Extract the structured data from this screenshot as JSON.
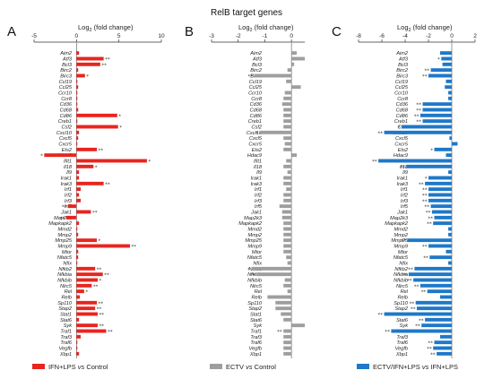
{
  "figure": {
    "title": "RelB target genes",
    "axis_title_prefix": "Log",
    "axis_title_sub": "2",
    "axis_title_suffix": " (fold change)"
  },
  "genes": [
    "Aim2",
    "Atf3",
    "Bcl3",
    "Birc2",
    "Birc3",
    "Ccl19",
    "Ccl25",
    "Ccr10",
    "Ccr8",
    "Cd36",
    "Cd68",
    "Cd86",
    "Creb1",
    "Csf2",
    "Cxcl10",
    "Cxcl5",
    "Cxcr5",
    "Ets2",
    "Hdac9",
    "Ifit1",
    "Il18",
    "Il9",
    "Irak1",
    "Irak3",
    "Irf1",
    "Irf2",
    "Irf3",
    "Irf5",
    "Jak1",
    "Map2k3",
    "Mapkapk2",
    "Mmd2",
    "Mmp2",
    "Mmp25",
    "Mmp9",
    "Mtor",
    "Nfatc5",
    "Nfix",
    "Nfkb2",
    "Nfkbia",
    "Nfkbib",
    "Nlrc5",
    "Rel",
    "Relb",
    "Sp110",
    "Stap2",
    "Stat1",
    "Stat6",
    "Syk",
    "Traf1",
    "Traf3",
    "Traf6",
    "Vegfb",
    "Xbp1"
  ],
  "chart_data": [
    {
      "type": "bar",
      "orientation": "horizontal",
      "panel": "A",
      "xlim": [
        -5,
        10
      ],
      "xticks": [
        "-5",
        "0",
        "5",
        "10"
      ],
      "series": [
        {
          "name": "IFN+LPS vs Control",
          "color": "#e8251f"
        }
      ],
      "legend": {
        "pre": "IFN+LPS ",
        "italic": "vs",
        "post": " Control"
      },
      "values": [
        0.3,
        3.2,
        2.8,
        0.2,
        1.0,
        0.1,
        0.2,
        0.1,
        0.1,
        0.1,
        0.2,
        4.8,
        0.1,
        4.9,
        0.3,
        0.2,
        0.1,
        2.4,
        -3.8,
        8.3,
        2.0,
        0.3,
        0.3,
        3.2,
        0.5,
        0.3,
        0.5,
        -1.0,
        1.7,
        -1.2,
        0.3,
        0.1,
        0.2,
        2.4,
        6.3,
        0.2,
        0.2,
        0.1,
        2.2,
        3.1,
        2.5,
        1.8,
        0.9,
        0.4,
        2.4,
        2.2,
        2.5,
        0.3,
        2.5,
        3.5,
        0.5,
        0.1,
        0.1,
        0.3
      ],
      "significance": [
        "",
        "**",
        "**",
        "",
        "*",
        "",
        "",
        "",
        "",
        "",
        "",
        "*",
        "",
        "*",
        "",
        "",
        "",
        "**",
        "*",
        "*",
        "*",
        "",
        "",
        "**",
        "",
        "",
        "",
        "**",
        "**",
        "**",
        "",
        "",
        "",
        "*",
        "**",
        "",
        "",
        "",
        "**",
        "**",
        "*",
        "**",
        "*",
        "",
        "**",
        "**",
        "**",
        "",
        "**",
        "**",
        "",
        "",
        "",
        ""
      ]
    },
    {
      "type": "bar",
      "orientation": "horizontal",
      "panel": "B",
      "xlim": [
        -3,
        0.5
      ],
      "xticks": [
        "-3",
        "-2",
        "-1",
        "0"
      ],
      "series": [
        {
          "name": "ECTV vs Control",
          "color": "#9e9e9e"
        }
      ],
      "legend": {
        "pre": "ECTV ",
        "italic": "vs",
        "post": " Control"
      },
      "values": [
        0.2,
        0.5,
        0.1,
        -0.15,
        -1.4,
        -0.2,
        0.35,
        -0.25,
        -0.3,
        -0.35,
        -0.3,
        -0.3,
        -0.3,
        -0.3,
        -1.2,
        -0.3,
        -0.25,
        -0.3,
        0.2,
        -0.2,
        -0.3,
        -0.15,
        -0.3,
        -0.3,
        -0.2,
        -0.3,
        -0.3,
        -0.45,
        -0.35,
        -0.35,
        -0.3,
        -0.3,
        -0.3,
        -0.3,
        -0.3,
        -0.3,
        -0.2,
        -0.15,
        -1.5,
        -1.3,
        -0.25,
        -0.3,
        -0.15,
        -0.9,
        -0.6,
        -0.6,
        -0.4,
        -0.3,
        0.5,
        -0.3,
        -0.3,
        -0.3,
        -0.3,
        -0.3
      ],
      "significance": [
        "",
        "",
        "",
        "",
        "**",
        "",
        "",
        "",
        "",
        "",
        "",
        "",
        "",
        "",
        "*",
        "",
        "",
        "",
        "",
        "",
        "",
        "",
        "",
        "",
        "",
        "",
        "",
        "",
        "",
        "",
        "",
        "",
        "",
        "",
        "",
        "",
        "",
        "",
        "*",
        "**",
        "",
        "",
        "",
        "",
        "",
        "",
        "",
        "",
        "",
        "**",
        "",
        "",
        "",
        ""
      ]
    },
    {
      "type": "bar",
      "orientation": "horizontal",
      "panel": "C",
      "xlim": [
        -8,
        2
      ],
      "xticks": [
        "-8",
        "-6",
        "-4",
        "-2",
        "0",
        "2"
      ],
      "series": [
        {
          "name": "ECTV/IFN+LPS vs IFN+LPS",
          "color": "#1f78c8"
        }
      ],
      "legend": {
        "pre": "ECTV/IFN+LPS ",
        "italic": "vs",
        "post": " IFN+LPS"
      },
      "values": [
        -1.0,
        -0.9,
        -0.8,
        -1.8,
        -2.0,
        -0.5,
        -0.6,
        -0.3,
        -0.3,
        -2.5,
        -2.5,
        -2.7,
        -2.5,
        -4.3,
        -5.8,
        -0.2,
        0.5,
        -1.5,
        -0.5,
        -6.3,
        -3.9,
        -0.3,
        -2.0,
        -2.3,
        -2.0,
        -2.0,
        -2.0,
        -1.8,
        -1.7,
        -1.5,
        -1.6,
        -0.3,
        -0.3,
        -3.8,
        -2.0,
        -0.5,
        -1.9,
        -0.3,
        -3.2,
        -3.7,
        -3.3,
        -2.7,
        -2.1,
        -1.0,
        -3.1,
        -3.0,
        -5.8,
        -2.3,
        -2.6,
        -5.2,
        -1.0,
        -1.5,
        -1.6,
        -1.3
      ],
      "significance": [
        "",
        "*",
        "",
        "**",
        "**",
        "",
        "",
        "",
        "",
        "**",
        "**",
        "**",
        "**",
        "*",
        "**",
        "",
        "",
        "*",
        "",
        "**",
        "**",
        "",
        "*",
        "**",
        "**",
        "**",
        "**",
        "**",
        "**",
        "**",
        "**",
        "",
        "",
        "**",
        "**",
        "",
        "**",
        "",
        "**",
        "**",
        "**",
        "**",
        "**",
        "",
        "**",
        "**",
        "**",
        "**",
        "**",
        "**",
        "",
        "**",
        "**",
        "**"
      ]
    }
  ]
}
